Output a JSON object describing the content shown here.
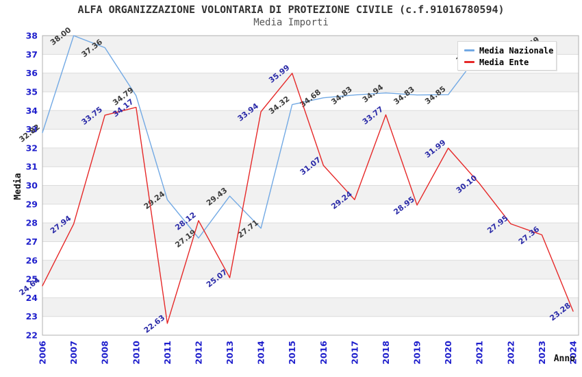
{
  "page": {
    "title": "ALFA ORGANIZZAZIONE VOLONTARIA DI PROTEZIONE CIVILE (c.f.91016780594)",
    "subtitle": "Media Importi"
  },
  "chart_data": {
    "type": "line",
    "title": "ALFA ORGANIZZAZIONE VOLONTARIA DI PROTEZIONE CIVILE (c.f.91016780594)",
    "subtitle": "Media Importi",
    "xlabel": "Anno",
    "ylabel": "Media",
    "ylim": [
      22,
      38
    ],
    "ytick_step": 1,
    "grid": "horizontal-bands-alternating",
    "legend_position": "top-right",
    "categories": [
      "2006",
      "2007",
      "2008",
      "2010",
      "2011",
      "2012",
      "2013",
      "2014",
      "2015",
      "2016",
      "2017",
      "2018",
      "2019",
      "2020",
      "2021",
      "2022",
      "2023",
      "2024"
    ],
    "series": [
      {
        "name": "Media Nazionale",
        "color": "#72A9E4",
        "label_color": "#3c3c3c",
        "values": [
          32.82,
          38.0,
          37.36,
          34.79,
          29.24,
          27.19,
          29.43,
          27.71,
          34.32,
          34.68,
          34.83,
          34.94,
          34.83,
          34.85,
          37.05,
          null,
          37.49,
          null
        ]
      },
      {
        "name": "Media Ente",
        "color": "#E62828",
        "label_color": "#2B2BA8",
        "values": [
          24.64,
          27.94,
          33.75,
          34.17,
          22.63,
          28.12,
          25.07,
          33.94,
          35.99,
          31.07,
          29.24,
          33.77,
          28.95,
          31.99,
          30.1,
          27.95,
          27.36,
          23.28
        ]
      }
    ],
    "colors": {
      "band_gray": "#f1f1f1",
      "gridline": "#dcdcdc",
      "plot_border": "#b0b0b0",
      "tick_label": "#1f1fcc",
      "axis_title": "#111111"
    }
  }
}
